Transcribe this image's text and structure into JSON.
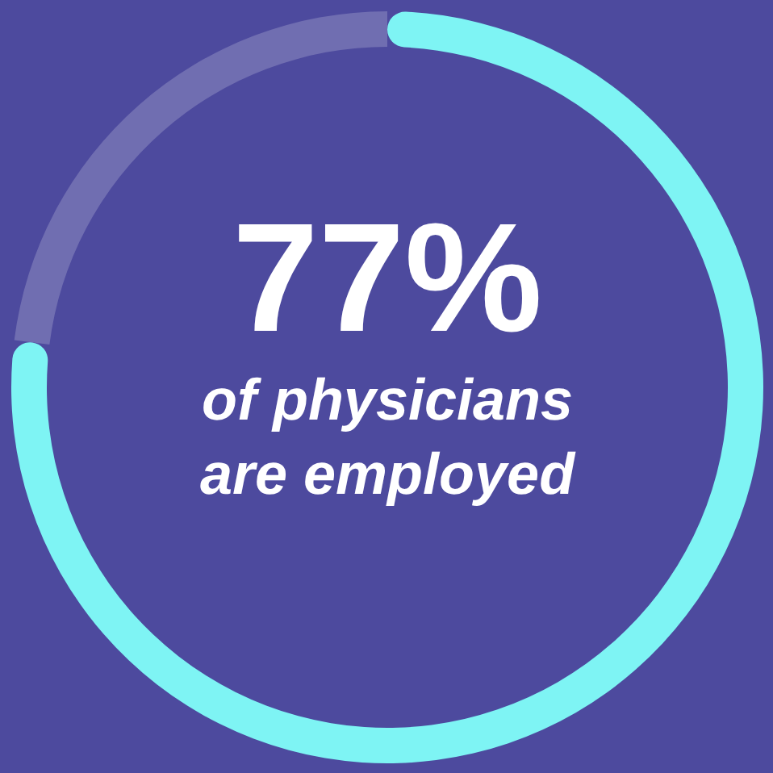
{
  "chart_data": {
    "type": "donut",
    "categories": [
      null,
      null
    ],
    "values": [
      77,
      23
    ],
    "colors": [
      "#7ef4f4",
      "#ffffff"
    ],
    "value_labels": [
      "77%",
      null
    ],
    "subtitle": "of physicians are employed"
  }
}
